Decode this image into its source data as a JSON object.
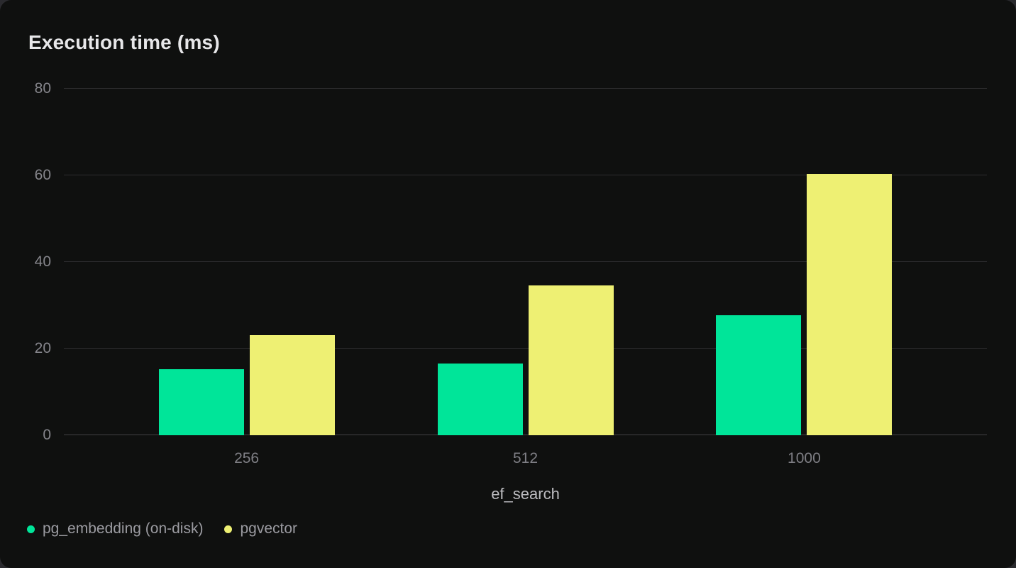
{
  "colors": {
    "page_bg": "#2a2a2e",
    "card_bg": "#0f100f",
    "grid": "#2d2d2f",
    "axis": "#414144",
    "title_text": "#e7e7e9",
    "tick_text": "#85858b",
    "xtick_text": "#7f7f85",
    "axis_label_text": "#bcbcc0",
    "legend_text": "#9b9ba1"
  },
  "chart_data": {
    "type": "bar",
    "title": "Execution time (ms)",
    "xlabel": "ef_search",
    "ylabel": "",
    "categories": [
      "256",
      "512",
      "1000"
    ],
    "series": [
      {
        "name": "pg_embedding (on-disk)",
        "color": "#00e599",
        "values": [
          15.2,
          16.5,
          27.7
        ]
      },
      {
        "name": "pgvector",
        "color": "#eef073",
        "values": [
          23.1,
          34.6,
          60.4
        ]
      }
    ],
    "ylim": [
      0,
      80
    ],
    "yticks": [
      0,
      20,
      40,
      60,
      80
    ],
    "grid": true,
    "legend_position": "bottom-left",
    "x_pad_frac": 0.198
  }
}
